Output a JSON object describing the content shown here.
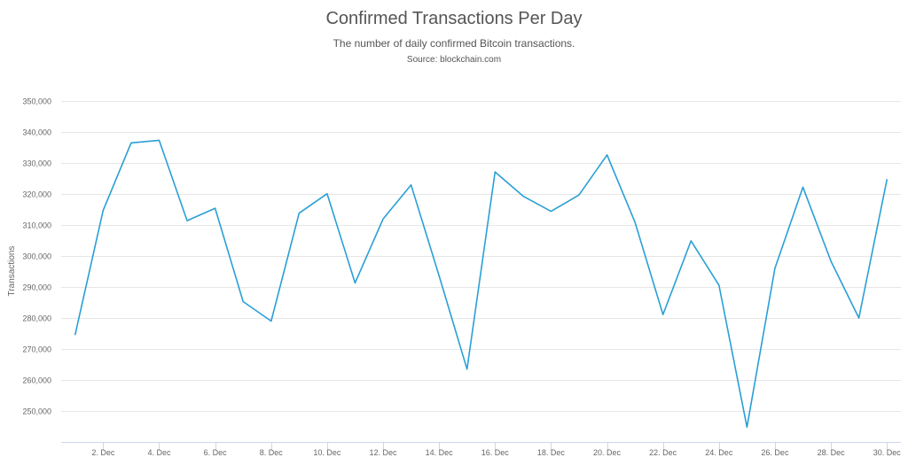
{
  "chart_data": {
    "type": "line",
    "title": "Confirmed Transactions Per Day",
    "subtitle": "The number of daily confirmed Bitcoin transactions.",
    "source": "Source: blockchain.com",
    "xlabel": "",
    "ylabel": "Transactions",
    "ylim": [
      240000,
      350000
    ],
    "xlim": [
      0.5,
      30.5
    ],
    "y_ticks": [
      "250,000",
      "260,000",
      "270,000",
      "280,000",
      "290,000",
      "300,000",
      "310,000",
      "320,000",
      "330,000",
      "340,000",
      "350,000"
    ],
    "x_ticks": [
      {
        "day": 2,
        "label": "2. Dec"
      },
      {
        "day": 4,
        "label": "4. Dec"
      },
      {
        "day": 6,
        "label": "6. Dec"
      },
      {
        "day": 8,
        "label": "8. Dec"
      },
      {
        "day": 10,
        "label": "10. Dec"
      },
      {
        "day": 12,
        "label": "12. Dec"
      },
      {
        "day": 14,
        "label": "14. Dec"
      },
      {
        "day": 16,
        "label": "16. Dec"
      },
      {
        "day": 18,
        "label": "18. Dec"
      },
      {
        "day": 20,
        "label": "20. Dec"
      },
      {
        "day": 22,
        "label": "22. Dec"
      },
      {
        "day": 24,
        "label": "24. Dec"
      },
      {
        "day": 26,
        "label": "26. Dec"
      },
      {
        "day": 28,
        "label": "28. Dec"
      },
      {
        "day": 30,
        "label": "30. Dec"
      }
    ],
    "grid": true,
    "legend": "none",
    "line_color": "#2a9fd6",
    "series": [
      {
        "x": [
          1,
          2,
          3,
          4,
          5,
          6,
          7,
          8,
          9,
          10,
          11,
          12,
          13,
          14,
          15,
          16,
          17,
          18,
          19,
          20,
          21,
          22,
          23,
          24,
          25,
          26,
          27,
          28,
          29,
          30
        ],
        "values": [
          274700,
          314700,
          336500,
          337300,
          311400,
          315400,
          285300,
          279000,
          313800,
          320100,
          291300,
          311900,
          322900,
          293600,
          263500,
          327100,
          319300,
          314400,
          319700,
          332600,
          310900,
          281100,
          304900,
          290600,
          244800,
          296000,
          322200,
          298300,
          280000,
          324600
        ]
      }
    ]
  }
}
